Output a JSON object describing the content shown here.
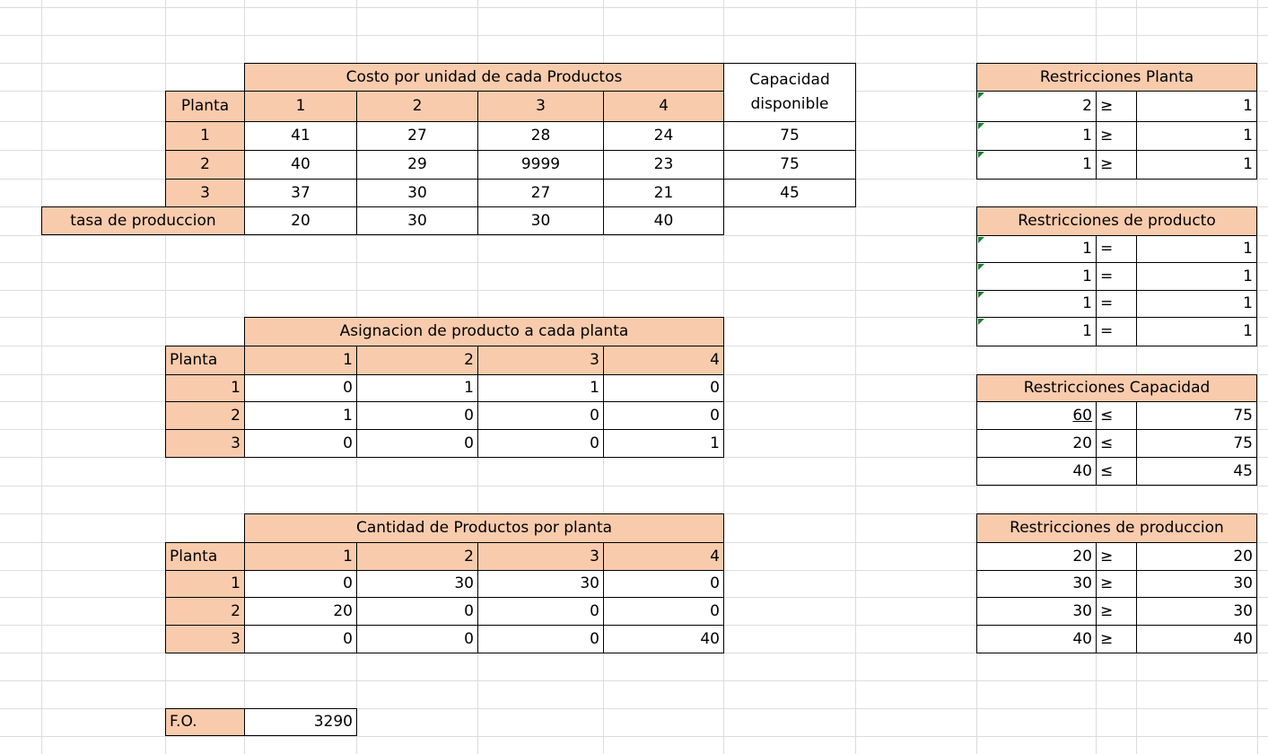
{
  "cost_table": {
    "title": "Costo por unidad de cada Productos",
    "capacity_header_line1": "Capacidad",
    "capacity_header_line2": "disponible",
    "plant_header": "Planta",
    "product_headers": [
      "1",
      "2",
      "3",
      "4"
    ],
    "rows": [
      {
        "plant": "1",
        "costs": [
          "41",
          "27",
          "28",
          "24"
        ],
        "capacity": "75"
      },
      {
        "plant": "2",
        "costs": [
          "40",
          "29",
          "9999",
          "23"
        ],
        "capacity": "75"
      },
      {
        "plant": "3",
        "costs": [
          "37",
          "30",
          "27",
          "21"
        ],
        "capacity": "45"
      }
    ],
    "rate_label": "tasa de produccion",
    "rates": [
      "20",
      "30",
      "30",
      "40"
    ]
  },
  "assignment_table": {
    "title": "Asignacion de producto a cada planta",
    "plant_header": "Planta",
    "product_headers": [
      "1",
      "2",
      "3",
      "4"
    ],
    "rows": [
      {
        "plant": "1",
        "values": [
          "0",
          "1",
          "1",
          "0"
        ]
      },
      {
        "plant": "2",
        "values": [
          "1",
          "0",
          "0",
          "0"
        ]
      },
      {
        "plant": "3",
        "values": [
          "0",
          "0",
          "0",
          "1"
        ]
      }
    ]
  },
  "quantity_table": {
    "title": "Cantidad de Productos por planta",
    "plant_header": "Planta",
    "product_headers": [
      "1",
      "2",
      "3",
      "4"
    ],
    "rows": [
      {
        "plant": "1",
        "values": [
          "0",
          "30",
          "30",
          "0"
        ]
      },
      {
        "plant": "2",
        "values": [
          "20",
          "0",
          "0",
          "0"
        ]
      },
      {
        "plant": "3",
        "values": [
          "0",
          "0",
          "0",
          "40"
        ]
      }
    ]
  },
  "objective": {
    "label": "F.O.",
    "value": "3290"
  },
  "restr_plant": {
    "title": "Restricciones Planta",
    "rows": [
      {
        "lhs": "2",
        "op": "≥",
        "rhs": "1"
      },
      {
        "lhs": "1",
        "op": "≥",
        "rhs": "1"
      },
      {
        "lhs": "1",
        "op": "≥",
        "rhs": "1"
      }
    ]
  },
  "restr_product": {
    "title": "Restricciones de producto",
    "rows": [
      {
        "lhs": "1",
        "op": "=",
        "rhs": "1"
      },
      {
        "lhs": "1",
        "op": "=",
        "rhs": "1"
      },
      {
        "lhs": "1",
        "op": "=",
        "rhs": "1"
      },
      {
        "lhs": "1",
        "op": "=",
        "rhs": "1"
      }
    ]
  },
  "restr_capacity": {
    "title": "Restricciones Capacidad",
    "rows": [
      {
        "lhs": "60",
        "op": "≤",
        "rhs": "75"
      },
      {
        "lhs": "20",
        "op": "≤",
        "rhs": "75"
      },
      {
        "lhs": "40",
        "op": "≤",
        "rhs": "45"
      }
    ]
  },
  "restr_production": {
    "title": "Restricciones de produccion",
    "rows": [
      {
        "lhs": "20",
        "op": "≥",
        "rhs": "20"
      },
      {
        "lhs": "30",
        "op": "≥",
        "rhs": "30"
      },
      {
        "lhs": "30",
        "op": "≥",
        "rhs": "30"
      },
      {
        "lhs": "40",
        "op": "≥",
        "rhs": "40"
      }
    ]
  },
  "colors": {
    "header_fill": "#f8cbad",
    "gridline": "#dcdcdc",
    "note_marker": "#1e7e34"
  }
}
